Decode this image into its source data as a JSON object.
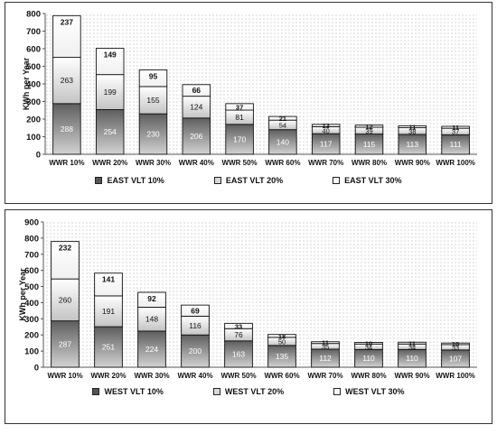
{
  "chart_data": [
    {
      "type": "bar",
      "stacked": true,
      "categories": [
        "WWR 10%",
        "WWR 20%",
        "WWR 30%",
        "WWR 40%",
        "WWR 50%",
        "WWR 60%",
        "WWR 70%",
        "WWR 80%",
        "WWR 90%",
        "WWR 100%"
      ],
      "series": [
        {
          "name": "EAST VLT 10%",
          "values": [
            288,
            254,
            230,
            206,
            170,
            140,
            117,
            115,
            113,
            111
          ],
          "color": "#555555"
        },
        {
          "name": "EAST VLT 20%",
          "values": [
            263,
            199,
            155,
            124,
            81,
            54,
            40,
            39,
            38,
            37
          ],
          "color": "#d8d8d8"
        },
        {
          "name": "EAST VLT 30%",
          "values": [
            237,
            149,
            95,
            66,
            37,
            21,
            13,
            12,
            11,
            11
          ],
          "color": "#ffffff"
        }
      ],
      "ylabel": "KWh per Year",
      "ylim": [
        0,
        800
      ],
      "yticks": [
        0,
        100,
        200,
        300,
        400,
        500,
        600,
        700,
        800
      ],
      "legend_position": "bottom",
      "background_pattern": "dotted"
    },
    {
      "type": "bar",
      "stacked": true,
      "categories": [
        "WWR 10%",
        "WWR 20%",
        "WWR 30%",
        "WWR 40%",
        "WWR 50%",
        "WWR 60%",
        "WWR 70%",
        "WWR 80%",
        "WWR 90%",
        "WWR 100%"
      ],
      "series": [
        {
          "name": "WEST VLT 10%",
          "values": [
            287,
            251,
            224,
            200,
            163,
            135,
            112,
            110,
            110,
            107
          ],
          "color": "#555555"
        },
        {
          "name": "WEST VLT 20%",
          "values": [
            260,
            191,
            148,
            116,
            76,
            50,
            35,
            34,
            34,
            33
          ],
          "color": "#d8d8d8"
        },
        {
          "name": "WEST VLT 30%",
          "values": [
            232,
            141,
            92,
            69,
            33,
            18,
            11,
            10,
            11,
            10
          ],
          "color": "#ffffff"
        }
      ],
      "ylabel": "KWh per Year",
      "ylim": [
        0,
        900
      ],
      "yticks": [
        0,
        100,
        200,
        300,
        400,
        500,
        600,
        700,
        800,
        900
      ],
      "legend_position": "bottom",
      "background_pattern": "dotted"
    }
  ]
}
